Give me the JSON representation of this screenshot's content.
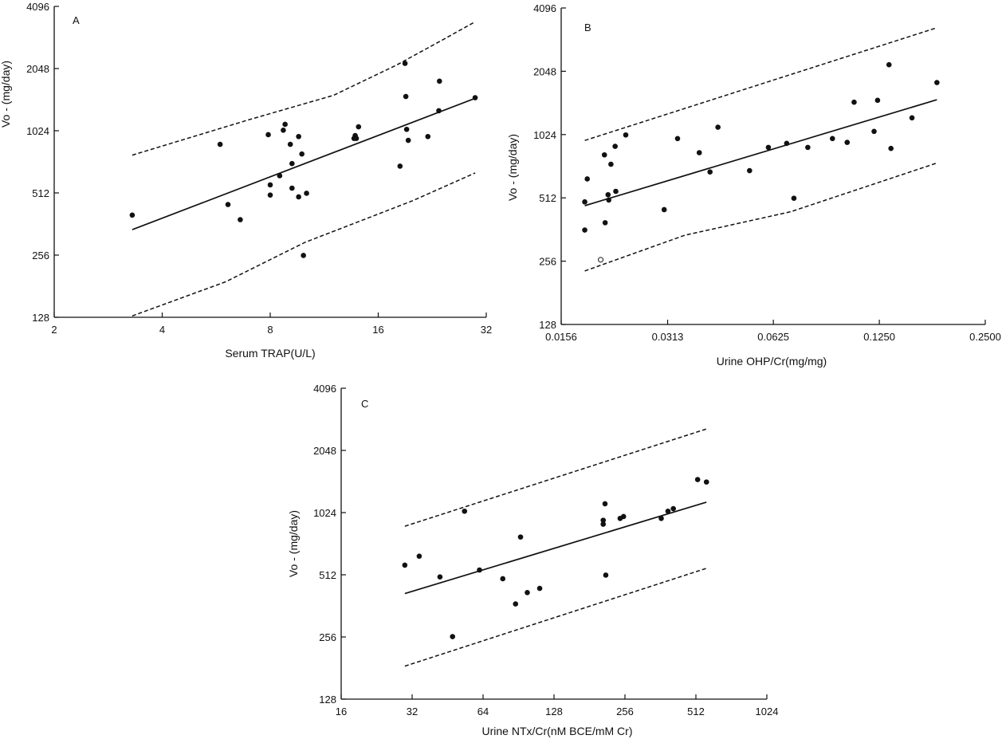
{
  "chart_data": [
    {
      "panel": "A",
      "type": "scatter",
      "xlabel": "Serum TRAP(U/L)",
      "ylabel": "Vo - (mg/day)",
      "x_scale": "log2",
      "y_scale": "log2",
      "xlim": [
        2,
        32
      ],
      "ylim": [
        128,
        4096
      ],
      "xticks": [
        "2",
        "4",
        "8",
        "16",
        "32"
      ],
      "yticks": [
        "128",
        "256",
        "512",
        "1024",
        "2048",
        "4096"
      ],
      "points": [
        [
          3.3,
          400
        ],
        [
          5.8,
          880
        ],
        [
          6.1,
          450
        ],
        [
          6.6,
          380
        ],
        [
          7.9,
          980
        ],
        [
          8.0,
          500
        ],
        [
          8.0,
          560
        ],
        [
          8.5,
          620
        ],
        [
          8.7,
          1030
        ],
        [
          8.8,
          1100
        ],
        [
          9.1,
          880
        ],
        [
          9.2,
          710
        ],
        [
          9.2,
          540
        ],
        [
          9.6,
          960
        ],
        [
          9.6,
          490
        ],
        [
          9.8,
          790
        ],
        [
          9.9,
          255
        ],
        [
          10.1,
          510
        ],
        [
          13.7,
          940
        ],
        [
          13.8,
          970
        ],
        [
          13.9,
          940
        ],
        [
          14.1,
          1070
        ],
        [
          18.4,
          690
        ],
        [
          19.0,
          2170
        ],
        [
          19.1,
          1500
        ],
        [
          19.2,
          1040
        ],
        [
          19.4,
          920
        ],
        [
          22.0,
          960
        ],
        [
          23.6,
          1280
        ],
        [
          23.7,
          1780
        ],
        [
          29.8,
          1480
        ]
      ],
      "fit": {
        "x": [
          3.3,
          29.8
        ],
        "y": [
          340,
          1470
        ]
      },
      "upper_band": {
        "x": [
          3.3,
          7.0,
          12.0,
          18.0,
          24.0,
          29.8
        ],
        "y": [
          780,
          1160,
          1520,
          2130,
          2800,
          3450
        ]
      },
      "lower_band": {
        "x": [
          3.3,
          6.0,
          10.0,
          14.0,
          20.0,
          29.8
        ],
        "y": [
          130,
          190,
          295,
          370,
          470,
          640
        ]
      }
    },
    {
      "panel": "B",
      "type": "scatter",
      "xlabel": "Urine OHP/Cr(mg/mg)",
      "ylabel": "Vo - (mg/day)",
      "x_scale": "log2",
      "y_scale": "log2",
      "xlim": [
        0.0156,
        0.25
      ],
      "ylim": [
        128,
        4096
      ],
      "xticks": [
        "0.0156",
        "0.0313",
        "0.0625",
        "0.1250",
        "0.2500"
      ],
      "yticks": [
        "128",
        "256",
        "512",
        "1024",
        "2048",
        "4096"
      ],
      "points": [
        [
          0.0182,
          360
        ],
        [
          0.0182,
          490
        ],
        [
          0.0185,
          630
        ],
        [
          0.0207,
          820
        ],
        [
          0.0208,
          390
        ],
        [
          0.0212,
          530
        ],
        [
          0.0213,
          500
        ],
        [
          0.0216,
          740
        ],
        [
          0.0222,
          900
        ],
        [
          0.0223,
          550
        ],
        [
          0.0238,
          1020
        ],
        [
          0.0306,
          450
        ],
        [
          0.0334,
          980
        ],
        [
          0.0385,
          840
        ],
        [
          0.0413,
          680
        ],
        [
          0.0435,
          1110
        ],
        [
          0.0535,
          690
        ],
        [
          0.0605,
          890
        ],
        [
          0.0682,
          930
        ],
        [
          0.0715,
          510
        ],
        [
          0.0783,
          890
        ],
        [
          0.092,
          980
        ],
        [
          0.1013,
          940
        ],
        [
          0.106,
          1460
        ],
        [
          0.1208,
          1060
        ],
        [
          0.1236,
          1490
        ],
        [
          0.1332,
          2200
        ],
        [
          0.1349,
          880
        ],
        [
          0.1548,
          1230
        ],
        [
          0.1822,
          1810
        ]
      ],
      "open_points": [
        [
          0.0202,
          260
        ]
      ],
      "fit": {
        "x": [
          0.0182,
          0.1822
        ],
        "y": [
          470,
          1500
        ]
      },
      "upper_band": {
        "x": [
          0.0182,
          0.1822
        ],
        "y": [
          960,
          3300
        ]
      },
      "lower_band": {
        "x": [
          0.0182,
          0.035,
          0.07,
          0.1822
        ],
        "y": [
          230,
          340,
          440,
          750
        ]
      }
    },
    {
      "panel": "C",
      "type": "scatter",
      "xlabel": "Urine NTx/Cr(nM BCE/mM Cr)",
      "ylabel": "Vo - (mg/day)",
      "x_scale": "log2",
      "y_scale": "log2",
      "xlim": [
        16,
        1024
      ],
      "ylim": [
        128,
        4096
      ],
      "xticks": [
        "16",
        "32",
        "64",
        "128",
        "256",
        "512",
        "1024"
      ],
      "yticks": [
        "128",
        "256",
        "512",
        "1024",
        "2048",
        "4096"
      ],
      "points": [
        [
          29.8,
          570
        ],
        [
          34.3,
          630
        ],
        [
          42.0,
          500
        ],
        [
          47.5,
          257
        ],
        [
          53.4,
          1040
        ],
        [
          61.8,
          540
        ],
        [
          77.6,
          490
        ],
        [
          87.9,
          370
        ],
        [
          92.3,
          780
        ],
        [
          98.6,
          420
        ],
        [
          111.3,
          440
        ],
        [
          207.0,
          900
        ],
        [
          207.0,
          940
        ],
        [
          210.7,
          1130
        ],
        [
          212.3,
          510
        ],
        [
          244.2,
          960
        ],
        [
          252.5,
          980
        ],
        [
          364.9,
          960
        ],
        [
          389.7,
          1040
        ],
        [
          410.7,
          1070
        ],
        [
          520.7,
          1480
        ],
        [
          567.6,
          1440
        ]
      ],
      "fit": {
        "x": [
          29.8,
          567.6
        ],
        "y": [
          415,
          1150
        ]
      },
      "upper_band": {
        "x": [
          29.8,
          567.6
        ],
        "y": [
          880,
          2600
        ]
      },
      "lower_band": {
        "x": [
          29.8,
          567.6
        ],
        "y": [
          185,
          550
        ]
      }
    }
  ]
}
